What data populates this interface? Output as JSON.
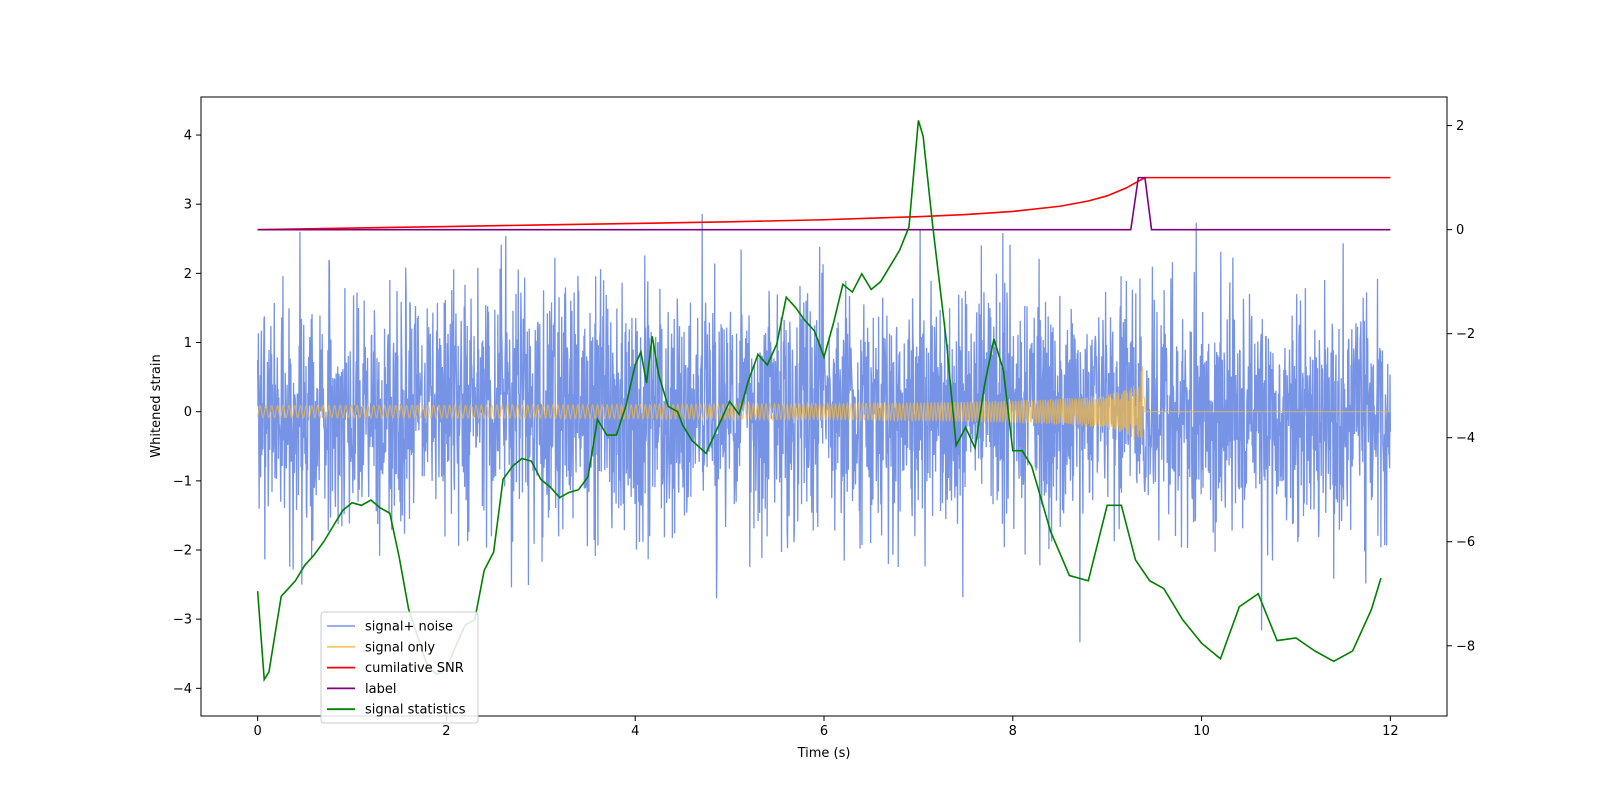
{
  "chart_data": {
    "type": "line",
    "title": "",
    "xlabel": "Time (s)",
    "ylabel": "Whitened strain",
    "ylabel_right": "",
    "xlim": [
      -0.6,
      12.6
    ],
    "ylim": [
      -4.4,
      4.55
    ],
    "ylim_right": [
      -9.35,
      2.55
    ],
    "x_ticks": [
      0,
      2,
      4,
      6,
      8,
      10,
      12
    ],
    "x_tick_labels": [
      "0",
      "2",
      "4",
      "6",
      "8",
      "10",
      "12"
    ],
    "y_ticks": [
      4,
      3,
      2,
      1,
      0,
      -1,
      -2,
      -3,
      -4
    ],
    "y_tick_labels": [
      "4",
      "3",
      "2",
      "1",
      "0",
      "−1",
      "−2",
      "−3",
      "−4"
    ],
    "y_ticks_right": [
      2,
      0,
      -2,
      -4,
      -6,
      -8
    ],
    "y_tick_labels_right": [
      "2",
      "0",
      "−2",
      "−4",
      "−6",
      "−8"
    ],
    "grid": false,
    "legend_position": "lower-left",
    "series": [
      {
        "name": "signal+ noise",
        "axis": "left",
        "color": "#6f8de5",
        "description": "dense noisy strain, roughly within ±2 with spikes to about ±4",
        "noise_seed": 7
      },
      {
        "name": "signal only",
        "axis": "left",
        "color": "#f5b942",
        "description": "chirp growing to peak amplitude ~0.7 at t=9.4 s, then zero",
        "chirp": {
          "start": 0.0,
          "merger": 9.4,
          "end": 12.0,
          "peak_amplitude": 0.7,
          "base_amplitude": 0.02
        }
      },
      {
        "name": "cumilative SNR",
        "axis": "right",
        "color": "#ff0000",
        "x": [
          0.0,
          1.0,
          2.0,
          3.0,
          4.0,
          5.0,
          6.0,
          6.5,
          7.0,
          7.5,
          8.0,
          8.5,
          8.8,
          9.0,
          9.2,
          9.35,
          9.4,
          10.0,
          11.0,
          12.0
        ],
        "y": [
          0.0,
          0.03,
          0.06,
          0.09,
          0.12,
          0.15,
          0.19,
          0.22,
          0.25,
          0.29,
          0.35,
          0.45,
          0.55,
          0.65,
          0.8,
          0.95,
          1.0,
          1.0,
          1.0,
          1.0
        ]
      },
      {
        "name": "label",
        "axis": "right",
        "color": "#800080",
        "x": [
          0.0,
          9.25,
          9.33,
          9.4,
          9.47,
          12.0
        ],
        "y": [
          0.0,
          0.0,
          1.0,
          1.0,
          0.0,
          0.0
        ]
      },
      {
        "name": "signal statistics",
        "axis": "right",
        "color": "#008000",
        "x": [
          0.0,
          0.07,
          0.12,
          0.2,
          0.25,
          0.3,
          0.4,
          0.5,
          0.6,
          0.7,
          0.8,
          0.9,
          1.0,
          1.1,
          1.2,
          1.3,
          1.4,
          1.5,
          1.6,
          1.7,
          1.8,
          1.9,
          2.0,
          2.1,
          2.2,
          2.3,
          2.4,
          2.5,
          2.6,
          2.7,
          2.8,
          2.9,
          3.0,
          3.1,
          3.2,
          3.3,
          3.4,
          3.5,
          3.6,
          3.7,
          3.8,
          3.9,
          4.0,
          4.06,
          4.12,
          4.18,
          4.25,
          4.35,
          4.45,
          4.5,
          4.6,
          4.75,
          4.85,
          5.0,
          5.1,
          5.2,
          5.3,
          5.4,
          5.5,
          5.6,
          5.7,
          5.8,
          5.9,
          6.0,
          6.1,
          6.2,
          6.3,
          6.4,
          6.5,
          6.6,
          6.7,
          6.8,
          6.9,
          7.0,
          7.05,
          7.15,
          7.3,
          7.4,
          7.5,
          7.6,
          7.7,
          7.8,
          7.9,
          8.0,
          8.1,
          8.2,
          8.4,
          8.6,
          8.8,
          9.0,
          9.15,
          9.3,
          9.45,
          9.6,
          9.8,
          10.0,
          10.2,
          10.4,
          10.6,
          10.8,
          11.0,
          11.2,
          11.4,
          11.6,
          11.8,
          11.9
        ],
        "y": [
          -6.95,
          -8.65,
          -8.5,
          -7.6,
          -7.05,
          -6.95,
          -6.75,
          -6.45,
          -6.25,
          -6.0,
          -5.7,
          -5.4,
          -5.25,
          -5.3,
          -5.2,
          -5.35,
          -5.45,
          -6.3,
          -7.3,
          -7.85,
          -8.4,
          -8.55,
          -8.45,
          -8.0,
          -7.6,
          -7.5,
          -6.55,
          -6.2,
          -4.8,
          -4.55,
          -4.4,
          -4.45,
          -4.8,
          -4.95,
          -5.15,
          -5.05,
          -5.0,
          -4.75,
          -3.65,
          -3.95,
          -3.95,
          -3.4,
          -2.6,
          -2.35,
          -2.95,
          -2.05,
          -2.8,
          -3.4,
          -3.5,
          -3.75,
          -4.05,
          -4.3,
          -3.9,
          -3.3,
          -3.55,
          -2.9,
          -2.4,
          -2.6,
          -2.2,
          -1.3,
          -1.5,
          -1.75,
          -1.95,
          -2.45,
          -1.8,
          -1.05,
          -1.2,
          -0.85,
          -1.15,
          -1.0,
          -0.7,
          -0.4,
          0.05,
          2.1,
          1.8,
          0.1,
          -2.2,
          -4.15,
          -3.8,
          -4.2,
          -3.0,
          -2.1,
          -2.7,
          -4.25,
          -4.25,
          -4.55,
          -5.8,
          -6.65,
          -6.75,
          -5.3,
          -5.3,
          -6.35,
          -6.75,
          -6.9,
          -7.5,
          -7.95,
          -8.25,
          -7.25,
          -7.0,
          -7.9,
          -7.85,
          -8.1,
          -8.3,
          -8.1,
          -7.3,
          -6.7
        ]
      }
    ]
  }
}
